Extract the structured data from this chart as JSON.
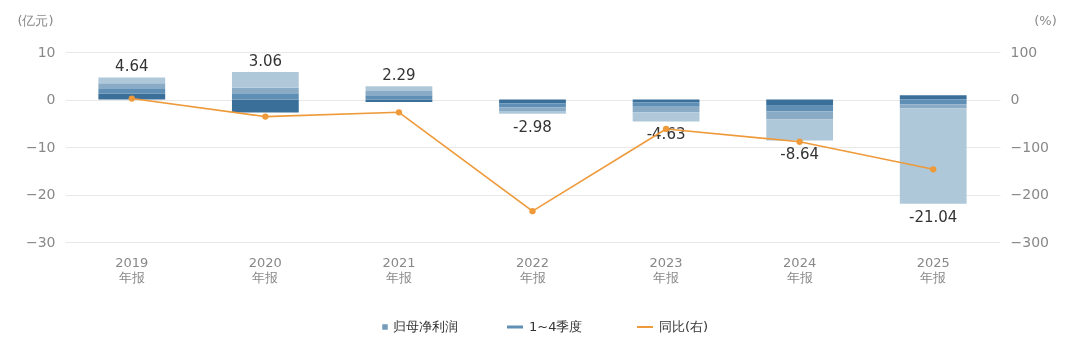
{
  "chart_data": {
    "type": "bar",
    "stacked": true,
    "categories": [
      "2019\n年报",
      "2020\n年报",
      "2021\n年报",
      "2022\n年报",
      "2023\n年报",
      "2024\n年报",
      "2025\n年报"
    ],
    "ylabel": "(亿元)",
    "y2label": "(%)",
    "ylim": [
      -30,
      10
    ],
    "yticks": [
      -30,
      -20,
      -10,
      0,
      10
    ],
    "y2lim": [
      -300,
      100
    ],
    "y2ticks": [
      -300,
      -200,
      -100,
      0,
      100
    ],
    "grid": "y",
    "legend": "bottom",
    "marker": "circle",
    "line_style": "solid",
    "totals": [
      "4.64",
      "3.06",
      "2.29",
      "-2.98",
      "-4.63",
      "-8.64",
      "-21.04"
    ],
    "series": [
      {
        "name": "归母净利润",
        "type": "bar",
        "color": "#3a6f9a",
        "values": [
          1.2,
          -2.74,
          -0.5,
          -0.8,
          -0.6,
          -1.3,
          0.9
        ]
      },
      {
        "name": "1~4季度",
        "type": "bar",
        "color": "#5f8fb4",
        "values": [
          1.0,
          1.3,
          0.9,
          -0.9,
          -0.9,
          -1.2,
          -1.0
        ]
      },
      {
        "type": "bar",
        "color": "#8aabc6",
        "values": [
          1.2,
          1.2,
          0.9,
          -0.7,
          -1.2,
          -1.7,
          -0.9
        ]
      },
      {
        "type": "bar",
        "color": "#afc8d9",
        "values": [
          1.24,
          3.3,
          0.99,
          -0.58,
          -1.93,
          -4.44,
          -20.04
        ]
      },
      {
        "name": "同比(右)",
        "type": "line",
        "axis": "y2",
        "color": "#ee9a3a",
        "values": [
          2,
          -36,
          -27,
          -235,
          -62,
          -89,
          -147
        ]
      }
    ]
  }
}
